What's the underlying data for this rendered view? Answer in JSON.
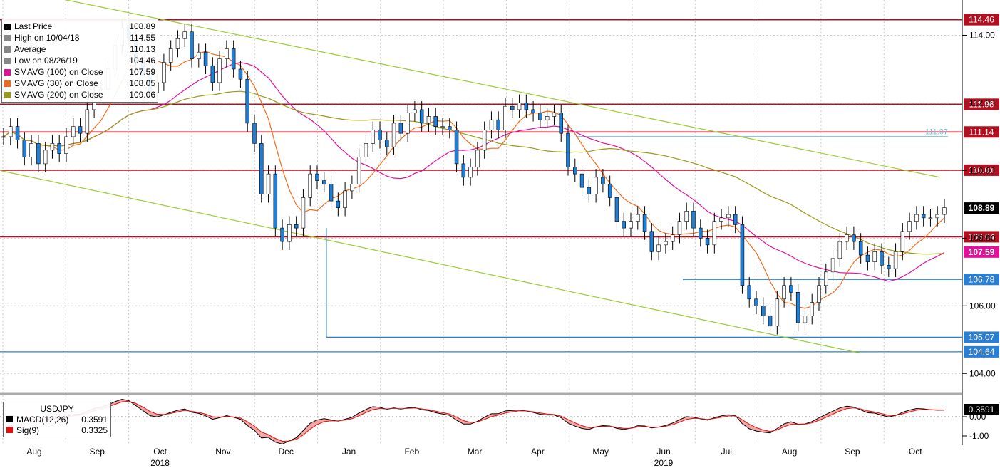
{
  "chart_data": {
    "type": "candlestick",
    "symbol": "USDJPY",
    "x_month_labels": [
      "Aug",
      "Sep",
      "Oct",
      "Nov",
      "Dec",
      "Jan",
      "Feb",
      "Mar",
      "Apr",
      "May",
      "Jun",
      "Jul",
      "Aug",
      "Sep",
      "Oct"
    ],
    "x_year_labels": [
      {
        "label": "2018",
        "month_index": 2
      },
      {
        "label": "2019",
        "month_index": 10
      }
    ],
    "y_ticks": [
      "104.00",
      "106.00",
      "108.00",
      "110.00",
      "112.00",
      "114.00"
    ],
    "ylim": [
      103.5,
      115.0
    ],
    "grid": true,
    "legend": {
      "placement": "top-left",
      "entries": [
        {
          "label": "Last Price",
          "value": "108.89",
          "color": "#000000"
        },
        {
          "label": "High on 10/04/18",
          "value": "114.55",
          "color": "#888888"
        },
        {
          "label": "Average",
          "value": "110.13",
          "color": "#888888"
        },
        {
          "label": "Low on 08/26/19",
          "value": "104.46",
          "color": "#888888"
        },
        {
          "label": "SMAVG (100)  on Close",
          "value": "107.59",
          "color": "#e0119a"
        },
        {
          "label": "SMAVG (30)  on Close",
          "value": "108.05",
          "color": "#f26a1b"
        },
        {
          "label": "SMAVG (200)  on Close",
          "value": "109.06",
          "color": "#9a9a1a"
        }
      ]
    },
    "horizontal_levels": [
      {
        "value": 114.46,
        "label": "114.46",
        "color": "#b01020"
      },
      {
        "value": 111.96,
        "label": "111.96",
        "color": "#b01020"
      },
      {
        "value": 111.14,
        "label": "111.14",
        "color": "#b01020"
      },
      {
        "value": 110.01,
        "label": "110.01",
        "color": "#b01020"
      },
      {
        "value": 108.04,
        "label": "108.04",
        "color": "#b01020"
      },
      {
        "value": 106.78,
        "label": "106.78",
        "color": "#2a7fd4"
      },
      {
        "value": 105.07,
        "label": "105.07",
        "color": "#2a7fd4"
      },
      {
        "value": 104.64,
        "label": "104.64",
        "color": "#2a7fd4"
      }
    ],
    "side_badges": [
      {
        "value": 108.89,
        "label": "108.89",
        "color": "#000000"
      },
      {
        "value": 107.59,
        "label": "107.59",
        "color": "#e0119a"
      }
    ],
    "annotations": [
      {
        "value": 111.07,
        "label": "111.07",
        "color": "#6ec6e6"
      }
    ],
    "trendlines": [
      {
        "from": [
          0.04,
          115.2
        ],
        "to": [
          0.94,
          109.8
        ],
        "color": "#9acd32"
      },
      {
        "from": [
          0.0,
          110.0
        ],
        "to": [
          0.86,
          104.6
        ],
        "color": "#9acd32"
      }
    ],
    "series": [
      {
        "name": "Last Price",
        "type": "candle",
        "values": [
          111.0,
          111.3,
          110.9,
          110.4,
          110.8,
          110.2,
          110.6,
          110.8,
          110.5,
          111.0,
          111.3,
          111.1,
          111.8,
          112.3,
          112.4,
          113.0,
          113.7,
          114.2,
          113.9,
          113.2,
          112.8,
          112.3,
          112.6,
          113.2,
          113.6,
          113.9,
          114.1,
          113.3,
          113.5,
          113.1,
          112.6,
          113.3,
          113.6,
          113.0,
          112.7,
          111.4,
          110.8,
          109.3,
          109.9,
          108.3,
          107.9,
          108.4,
          108.3,
          109.2,
          109.9,
          109.7,
          109.6,
          109.1,
          108.9,
          109.4,
          109.6,
          110.4,
          110.8,
          111.2,
          110.9,
          110.7,
          111.4,
          111.1,
          111.7,
          111.8,
          111.4,
          111.6,
          111.3,
          111.3,
          111.2,
          110.2,
          109.8,
          110.1,
          110.6,
          111.2,
          111.5,
          111.2,
          111.9,
          111.8,
          112.0,
          111.8,
          111.7,
          111.5,
          111.6,
          111.7,
          111.1,
          110.1,
          109.9,
          109.5,
          109.3,
          109.8,
          109.6,
          109.2,
          108.5,
          108.3,
          108.5,
          108.7,
          108.2,
          107.6,
          107.8,
          107.9,
          108.1,
          108.5,
          108.8,
          108.3,
          108.0,
          107.8,
          108.5,
          108.6,
          108.7,
          108.4,
          106.6,
          106.2,
          106.0,
          105.7,
          105.4,
          106.2,
          106.6,
          106.4,
          105.5,
          105.7,
          106.1,
          106.6,
          107.0,
          107.4,
          107.9,
          108.1,
          107.9,
          107.5,
          107.3,
          107.6,
          107.2,
          107.1,
          107.6,
          108.2,
          108.5,
          108.7,
          108.6,
          108.6,
          108.7,
          108.9
        ]
      },
      {
        "name": "SMAVG (30)  on Close",
        "type": "line",
        "color": "#f26a1b"
      },
      {
        "name": "SMAVG (100)  on Close",
        "type": "line",
        "color": "#e0119a"
      },
      {
        "name": "SMAVG (200)  on Close",
        "type": "line",
        "color": "#9a9a1a"
      }
    ],
    "macd": {
      "title": "USDJPY",
      "y_ticks": [
        "0.00",
        "-1.00"
      ],
      "last_value": "0.3591",
      "entries": [
        {
          "label": "MACD(12,26)",
          "value": "0.3591",
          "color": "#000000"
        },
        {
          "label": "Sig(9)",
          "value": "0.3325",
          "color": "#e01010"
        }
      ]
    }
  }
}
